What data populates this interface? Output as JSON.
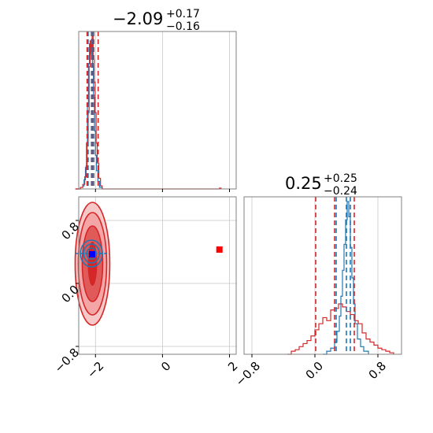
{
  "chart_data": {
    "type": "corner",
    "colors": {
      "red": "#d62728",
      "blue": "#1f77b4",
      "red_fill": "#f4a6a6",
      "blue_point": "#0000ff",
      "red_point": "#ff0000"
    },
    "params": [
      {
        "title_main": "−2.09",
        "title_plus": "+0.17",
        "title_minus": "−0.16",
        "xlim": [
          -2.5,
          2.2
        ],
        "xticks": [
          -2,
          0,
          2
        ],
        "xtick_labels": [
          "−2",
          "0",
          "2"
        ]
      },
      {
        "title_main": "0.25",
        "title_plus": "+0.25",
        "title_minus": "−0.24",
        "xlim": [
          -0.9,
          1.1
        ],
        "ylim": [
          -0.9,
          1.1
        ],
        "xticks": [
          -0.8,
          0.0,
          0.8
        ],
        "xtick_labels": [
          "−0.8",
          "0.0",
          "0.8"
        ],
        "yticks": [
          -0.8,
          0.0,
          0.8
        ],
        "ytick_labels": [
          "−0.8",
          "0.0",
          "0.8"
        ]
      }
    ],
    "quantiles_red": [
      [
        -2.25,
        -2.09,
        -1.92
      ],
      [
        0.01,
        0.25,
        0.5
      ]
    ],
    "quantiles_blue": [
      [
        -2.22,
        -2.12,
        -2.05
      ],
      [
        0.27,
        0.4,
        0.45
      ]
    ],
    "points": {
      "red": {
        "x": 1.7,
        "y": 0.43
      },
      "blue": {
        "x": -2.1,
        "y": 0.37
      }
    },
    "hist_red_p0": [
      [
        -2.6,
        0
      ],
      [
        -2.45,
        0.01
      ],
      [
        -2.38,
        0.03
      ],
      [
        -2.32,
        0.08
      ],
      [
        -2.28,
        0.15
      ],
      [
        -2.25,
        0.3
      ],
      [
        -2.22,
        0.5
      ],
      [
        -2.19,
        0.8
      ],
      [
        -2.16,
        0.97
      ],
      [
        -2.13,
        0.9
      ],
      [
        -2.1,
        1.0
      ],
      [
        -2.07,
        0.85
      ],
      [
        -2.04,
        0.7
      ],
      [
        -2.01,
        0.5
      ],
      [
        -1.98,
        0.3
      ],
      [
        -1.95,
        0.17
      ],
      [
        -1.9,
        0.07
      ],
      [
        -1.85,
        0.02
      ],
      [
        -1.8,
        0
      ],
      [
        1.7,
        0.005
      ],
      [
        1.75,
        0
      ]
    ],
    "hist_blue_p0": [
      [
        -2.6,
        0
      ],
      [
        -2.45,
        0.01
      ],
      [
        -2.38,
        0.02
      ],
      [
        -2.34,
        0.06
      ],
      [
        -2.3,
        0.14
      ],
      [
        -2.27,
        0.3
      ],
      [
        -2.24,
        0.55
      ],
      [
        -2.21,
        0.82
      ],
      [
        -2.18,
        0.95
      ],
      [
        -2.15,
        0.88
      ],
      [
        -2.12,
        0.98
      ],
      [
        -2.09,
        0.8
      ],
      [
        -2.06,
        0.6
      ],
      [
        -2.03,
        0.38
      ],
      [
        -2.0,
        0.22
      ],
      [
        -1.97,
        0.12
      ],
      [
        -1.93,
        0.05
      ],
      [
        -1.88,
        0.01
      ],
      [
        -1.8,
        0
      ]
    ],
    "hist_red_p1": [
      [
        -0.35,
        0
      ],
      [
        -0.3,
        0.02
      ],
      [
        -0.25,
        0.03
      ],
      [
        -0.2,
        0.05
      ],
      [
        -0.15,
        0.07
      ],
      [
        -0.1,
        0.09
      ],
      [
        -0.05,
        0.12
      ],
      [
        0.0,
        0.16
      ],
      [
        0.05,
        0.2
      ],
      [
        0.1,
        0.24
      ],
      [
        0.15,
        0.22
      ],
      [
        0.2,
        0.29
      ],
      [
        0.25,
        0.3
      ],
      [
        0.3,
        0.33
      ],
      [
        0.35,
        0.31
      ],
      [
        0.4,
        0.28
      ],
      [
        0.45,
        0.26
      ],
      [
        0.5,
        0.22
      ],
      [
        0.55,
        0.2
      ],
      [
        0.6,
        0.14
      ],
      [
        0.65,
        0.1
      ],
      [
        0.7,
        0.08
      ],
      [
        0.75,
        0.06
      ],
      [
        0.8,
        0.04
      ],
      [
        0.85,
        0.03
      ],
      [
        0.9,
        0.02
      ],
      [
        0.95,
        0.01
      ],
      [
        1.0,
        0
      ]
    ],
    "hist_blue_p1": [
      [
        0.1,
        0
      ],
      [
        0.15,
        0.02
      ],
      [
        0.2,
        0.04
      ],
      [
        0.25,
        0.08
      ],
      [
        0.28,
        0.15
      ],
      [
        0.31,
        0.25
      ],
      [
        0.33,
        0.38
      ],
      [
        0.35,
        0.55
      ],
      [
        0.37,
        0.72
      ],
      [
        0.39,
        0.88
      ],
      [
        0.41,
        1.0
      ],
      [
        0.43,
        0.9
      ],
      [
        0.45,
        0.7
      ],
      [
        0.47,
        0.5
      ],
      [
        0.49,
        0.33
      ],
      [
        0.51,
        0.2
      ],
      [
        0.54,
        0.1
      ],
      [
        0.58,
        0.05
      ],
      [
        0.62,
        0.02
      ],
      [
        0.68,
        0
      ]
    ]
  }
}
